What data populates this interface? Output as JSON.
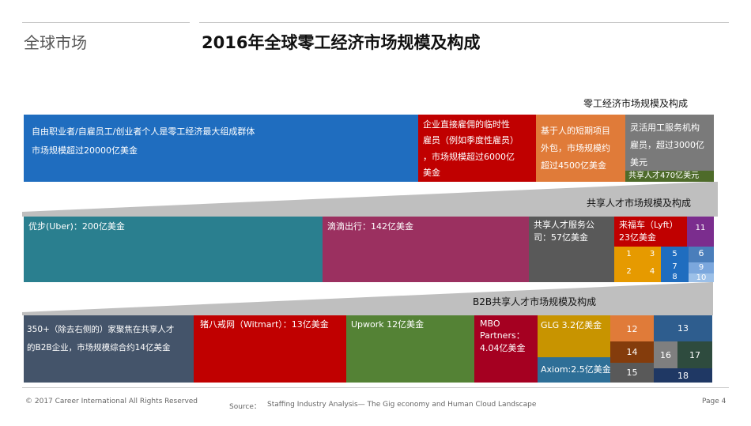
{
  "header": {
    "section_label": "全球市场",
    "title": "2016年全球零工经济市场规模及构成"
  },
  "level1": {
    "title": "零工经济市场规模及构成",
    "cells": [
      {
        "lines": [
          "自由职业者/自雇员工/创业者个人是零工经济最大组成群体",
          "市场规模超过20000亿美金"
        ],
        "color": "#1f6dbf"
      },
      {
        "lines": [
          "企业直接雇佣的临时性",
          "雇员（例如季度性雇员）",
          "，市场规模超过6000亿",
          "美金"
        ],
        "color": "#c00000"
      },
      {
        "lines": [
          "基于人的短期项目",
          "外包，市场规模约",
          "超过4500亿美金"
        ],
        "color": "#e07b39"
      },
      {
        "lines": [
          "灵活用工服务机构",
          "雇员，超过3000亿",
          "美元"
        ],
        "color": "#7a7a7a"
      },
      {
        "lines": [
          "共享人才470亿美元"
        ],
        "color": "#4e6b2a"
      }
    ]
  },
  "level2": {
    "title": "共享人才市场规模及构成",
    "cells": [
      {
        "lines": [
          "优步(Uber)：200亿美金"
        ],
        "color": "#2a7f8f"
      },
      {
        "lines": [
          "滴滴出行：142亿美金"
        ],
        "color": "#9b3060"
      },
      {
        "lines": [
          "共享人才服务公",
          "司：57亿美金"
        ],
        "color": "#595959"
      },
      {
        "lines": [
          "来福车（Lyft）",
          "23亿美金"
        ],
        "color": "#c00000"
      },
      {
        "lines": [
          "11"
        ],
        "color": "#7b2d8e"
      }
    ],
    "small": [
      {
        "label": "1",
        "color": "#e69a00"
      },
      {
        "label": "3",
        "color": "#e69a00"
      },
      {
        "label": "5",
        "color": "#1f6dbf"
      },
      {
        "label": "6",
        "color": "#4a7ebb"
      },
      {
        "label": "2",
        "color": "#e69a00"
      },
      {
        "label": "4",
        "color": "#e69a00"
      },
      {
        "label": "7",
        "color": "#1f6dbf"
      },
      {
        "label": "8",
        "color": "#1f6dbf"
      },
      {
        "label": "9",
        "color": "#7ba7dd"
      },
      {
        "label": "10",
        "color": "#9cc0e8"
      }
    ]
  },
  "level3": {
    "title": "B2B共享人才市场规模及构成",
    "cells": [
      {
        "lines": [
          "350+（除去右侧的）家聚焦在共享人才",
          "的B2B企业，市场规模综合约14亿美金"
        ],
        "color": "#44546a"
      },
      {
        "lines": [
          "猪八戒网（Witmart）：13亿美金"
        ],
        "color": "#c00000"
      },
      {
        "lines": [
          "Upwork 12亿美金"
        ],
        "color": "#548235"
      },
      {
        "lines": [
          "MBO",
          "Partners：",
          "4.04亿美金"
        ],
        "color": "#a50021"
      },
      {
        "lines": [
          "GLG 3.2亿美金"
        ],
        "color": "#c89400"
      },
      {
        "lines": [
          "Axiom:2.5亿美金"
        ],
        "color": "#2e6f97"
      }
    ],
    "small": [
      {
        "label": "12",
        "color": "#e07b39"
      },
      {
        "label": "13",
        "color": "#2e5d8e"
      },
      {
        "label": "14",
        "color": "#843c0c"
      },
      {
        "label": "15",
        "color": "#595959"
      },
      {
        "label": "16",
        "color": "#7f7f7f"
      },
      {
        "label": "17",
        "color": "#2e4b3e"
      },
      {
        "label": "18",
        "color": "#1f3864"
      }
    ]
  },
  "footer": {
    "copyright": "© 2017 Career International All Rights Reserved",
    "source_label": "Source：",
    "source_text": "Staffing Industry Analysis— The Gig economy and Human Cloud Landscape",
    "page": "Page 4"
  },
  "chart_data": {
    "type": "treemap",
    "title": "2016年全球零工经济市场规模及构成",
    "units": "亿美金",
    "levels": [
      {
        "name": "零工经济市场规模及构成",
        "items": [
          {
            "label": "自由职业者/自雇员工/创业者个人",
            "value": 20000
          },
          {
            "label": "企业直接雇佣的临时性雇员",
            "value": 6000
          },
          {
            "label": "基于人的短期项目外包",
            "value": 4500
          },
          {
            "label": "灵活用工服务机构雇员",
            "value": 3000
          },
          {
            "label": "共享人才",
            "value": 470
          }
        ]
      },
      {
        "name": "共享人才市场规模及构成",
        "items": [
          {
            "label": "优步(Uber)",
            "value": 200
          },
          {
            "label": "滴滴出行",
            "value": 142
          },
          {
            "label": "共享人才服务公司",
            "value": 57
          },
          {
            "label": "来福车（Lyft）",
            "value": 23
          }
        ]
      },
      {
        "name": "B2B共享人才市场规模及构成",
        "items": [
          {
            "label": "350+ B2B企业",
            "value": 14
          },
          {
            "label": "猪八戒网（Witmart）",
            "value": 13
          },
          {
            "label": "Upwork",
            "value": 12
          },
          {
            "label": "MBO Partners",
            "value": 4.04
          },
          {
            "label": "GLG",
            "value": 3.2
          },
          {
            "label": "Axiom",
            "value": 2.5
          }
        ]
      }
    ]
  }
}
